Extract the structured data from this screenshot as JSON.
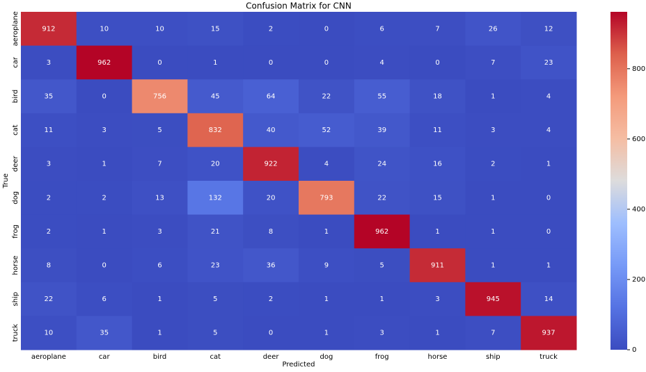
{
  "chart_data": {
    "type": "heatmap",
    "title": "Confusion Matrix for CNN",
    "xlabel": "Predicted",
    "ylabel": "True",
    "x_categories": [
      "aeroplane",
      "car",
      "bird",
      "cat",
      "deer",
      "dog",
      "frog",
      "horse",
      "ship",
      "truck"
    ],
    "y_categories": [
      "aeroplane",
      "car",
      "bird",
      "cat",
      "deer",
      "dog",
      "frog",
      "horse",
      "ship",
      "truck"
    ],
    "values": [
      [
        912,
        10,
        10,
        15,
        2,
        0,
        6,
        7,
        26,
        12
      ],
      [
        3,
        962,
        0,
        1,
        0,
        0,
        4,
        0,
        7,
        23
      ],
      [
        35,
        0,
        756,
        45,
        64,
        22,
        55,
        18,
        1,
        4
      ],
      [
        11,
        3,
        5,
        832,
        40,
        52,
        39,
        11,
        3,
        4
      ],
      [
        3,
        1,
        7,
        20,
        922,
        4,
        24,
        16,
        2,
        1
      ],
      [
        2,
        2,
        13,
        132,
        20,
        793,
        22,
        15,
        1,
        0
      ],
      [
        2,
        1,
        3,
        21,
        8,
        1,
        962,
        1,
        1,
        0
      ],
      [
        8,
        0,
        6,
        23,
        36,
        9,
        5,
        911,
        1,
        1
      ],
      [
        22,
        6,
        1,
        5,
        2,
        1,
        1,
        3,
        945,
        14
      ],
      [
        10,
        35,
        1,
        5,
        0,
        1,
        3,
        1,
        7,
        937
      ]
    ],
    "colormap": "coolwarm",
    "clim": [
      0,
      962
    ],
    "cticks": [
      0,
      200,
      400,
      600,
      800
    ]
  }
}
